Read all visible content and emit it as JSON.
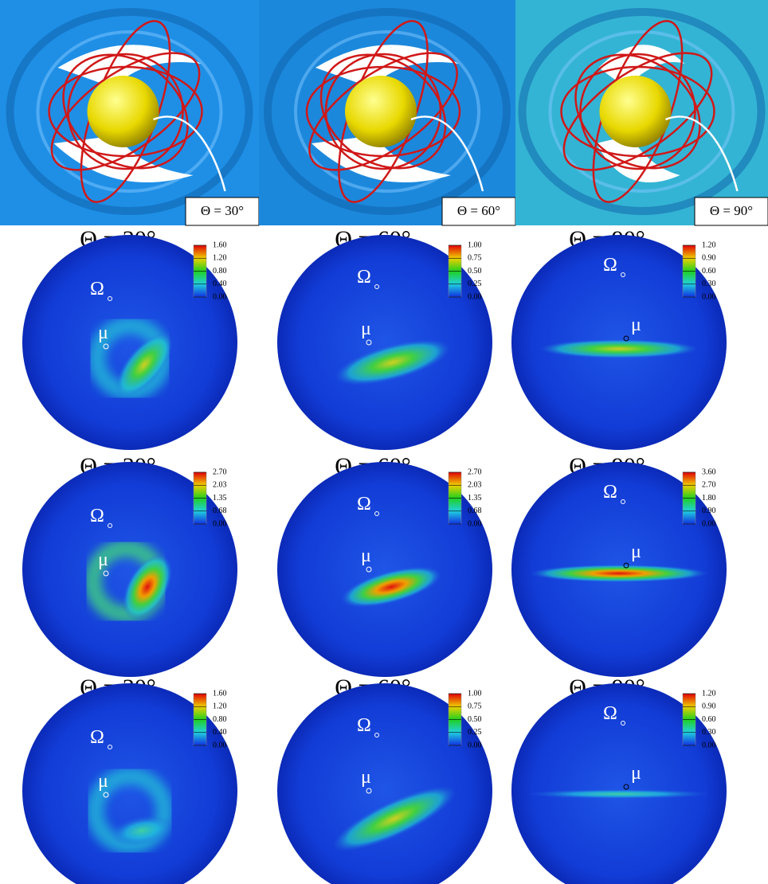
{
  "top_panels": [
    {
      "label": "Θ = 30°"
    },
    {
      "label": "Θ = 60°"
    },
    {
      "label": "Θ = 90°"
    }
  ],
  "map_rows": [
    [
      {
        "title": "Θ = 30°",
        "colorbar_ticks": [
          "1.60",
          "1.20",
          "0.80",
          "0.40",
          "0.00"
        ],
        "omega": "Ω",
        "mu": "μ"
      },
      {
        "title": "Θ = 60°",
        "colorbar_ticks": [
          "1.00",
          "0.75",
          "0.50",
          "0.25",
          "0.00"
        ],
        "omega": "Ω",
        "mu": "μ"
      },
      {
        "title": "Θ = 90°",
        "colorbar_ticks": [
          "1.20",
          "0.90",
          "0.60",
          "0.30",
          "0.00"
        ],
        "omega": "Ω",
        "mu": "μ"
      }
    ],
    [
      {
        "title": "Θ = 30°",
        "colorbar_ticks": [
          "2.70",
          "2.03",
          "1.35",
          "0.68",
          "0.00"
        ],
        "omega": "Ω",
        "mu": "μ"
      },
      {
        "title": "Θ = 60°",
        "colorbar_ticks": [
          "2.70",
          "2.03",
          "1.35",
          "0.68",
          "0.00"
        ],
        "omega": "Ω",
        "mu": "μ"
      },
      {
        "title": "Θ = 90°",
        "colorbar_ticks": [
          "3.60",
          "2.70",
          "1.80",
          "0.90",
          "0.00"
        ],
        "omega": "Ω",
        "mu": "μ"
      }
    ],
    [
      {
        "title": "Θ = 30°",
        "colorbar_ticks": [
          "1.60",
          "1.20",
          "0.80",
          "0.40",
          "0.00"
        ],
        "omega": "Ω",
        "mu": "μ"
      },
      {
        "title": "Θ = 60°",
        "colorbar_ticks": [
          "1.00",
          "0.75",
          "0.50",
          "0.25",
          "0.00"
        ],
        "omega": "Ω",
        "mu": "μ"
      },
      {
        "title": "Θ = 90°",
        "colorbar_ticks": [
          "1.20",
          "0.90",
          "0.60",
          "0.30",
          "0.00"
        ],
        "omega": "Ω",
        "mu": "μ"
      }
    ]
  ]
}
